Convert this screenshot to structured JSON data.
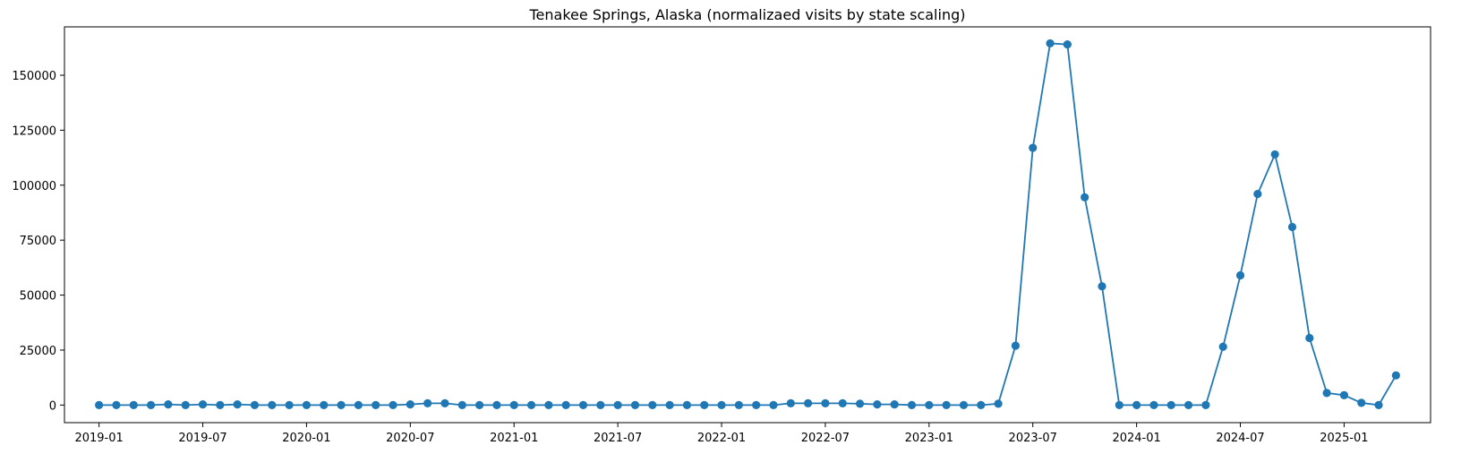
{
  "chart_data": {
    "type": "line",
    "title": "Tenakee Springs, Alaska (normalizaed visits by state scaling)",
    "xlabel": "",
    "ylabel": "",
    "color": "#1f77b4",
    "marker": "circle",
    "grid": false,
    "legend": "none",
    "xlim": [
      "2018-11-01",
      "2025-06-01"
    ],
    "ylim": [
      -8000,
      172000
    ],
    "x_ticks": [
      "2019-01",
      "2019-07",
      "2020-01",
      "2020-07",
      "2021-01",
      "2021-07",
      "2022-01",
      "2022-07",
      "2023-01",
      "2023-07",
      "2024-01",
      "2024-07",
      "2025-01"
    ],
    "y_ticks": [
      0,
      25000,
      50000,
      75000,
      100000,
      125000,
      150000
    ],
    "series": [
      {
        "x": [
          "2019-01",
          "2019-02",
          "2019-03",
          "2019-04",
          "2019-05",
          "2019-06",
          "2019-07",
          "2019-08",
          "2019-09",
          "2019-10",
          "2019-11",
          "2019-12",
          "2020-01",
          "2020-02",
          "2020-03",
          "2020-04",
          "2020-05",
          "2020-06",
          "2020-07",
          "2020-08",
          "2020-09",
          "2020-10",
          "2020-11",
          "2020-12",
          "2021-01",
          "2021-02",
          "2021-03",
          "2021-04",
          "2021-05",
          "2021-06",
          "2021-07",
          "2021-08",
          "2021-09",
          "2021-10",
          "2021-11",
          "2021-12",
          "2022-01",
          "2022-02",
          "2022-03",
          "2022-04",
          "2022-05",
          "2022-06",
          "2022-07",
          "2022-08",
          "2022-09",
          "2022-10",
          "2022-11",
          "2022-12",
          "2023-01",
          "2023-02",
          "2023-03",
          "2023-04",
          "2023-05",
          "2023-06",
          "2023-07",
          "2023-08",
          "2023-09",
          "2023-10",
          "2023-11",
          "2023-12",
          "2024-01",
          "2024-02",
          "2024-03",
          "2024-04",
          "2024-05",
          "2024-06",
          "2024-07",
          "2024-08",
          "2024-09",
          "2024-10",
          "2024-11",
          "2024-12",
          "2025-01",
          "2025-02",
          "2025-03",
          "2025-04"
        ],
        "values": [
          0,
          0,
          0,
          0,
          300,
          0,
          300,
          0,
          300,
          0,
          0,
          0,
          0,
          0,
          0,
          0,
          0,
          0,
          300,
          800,
          800,
          0,
          0,
          0,
          0,
          0,
          0,
          0,
          0,
          0,
          0,
          0,
          0,
          0,
          0,
          0,
          0,
          0,
          0,
          0,
          800,
          800,
          800,
          800,
          600,
          300,
          300,
          0,
          0,
          0,
          0,
          0,
          600,
          27000,
          117000,
          164500,
          164000,
          94500,
          54000,
          0,
          0,
          0,
          0,
          0,
          0,
          26500,
          59000,
          96000,
          114000,
          81000,
          30500,
          5500,
          4500,
          1000,
          0,
          13500
        ]
      }
    ]
  }
}
